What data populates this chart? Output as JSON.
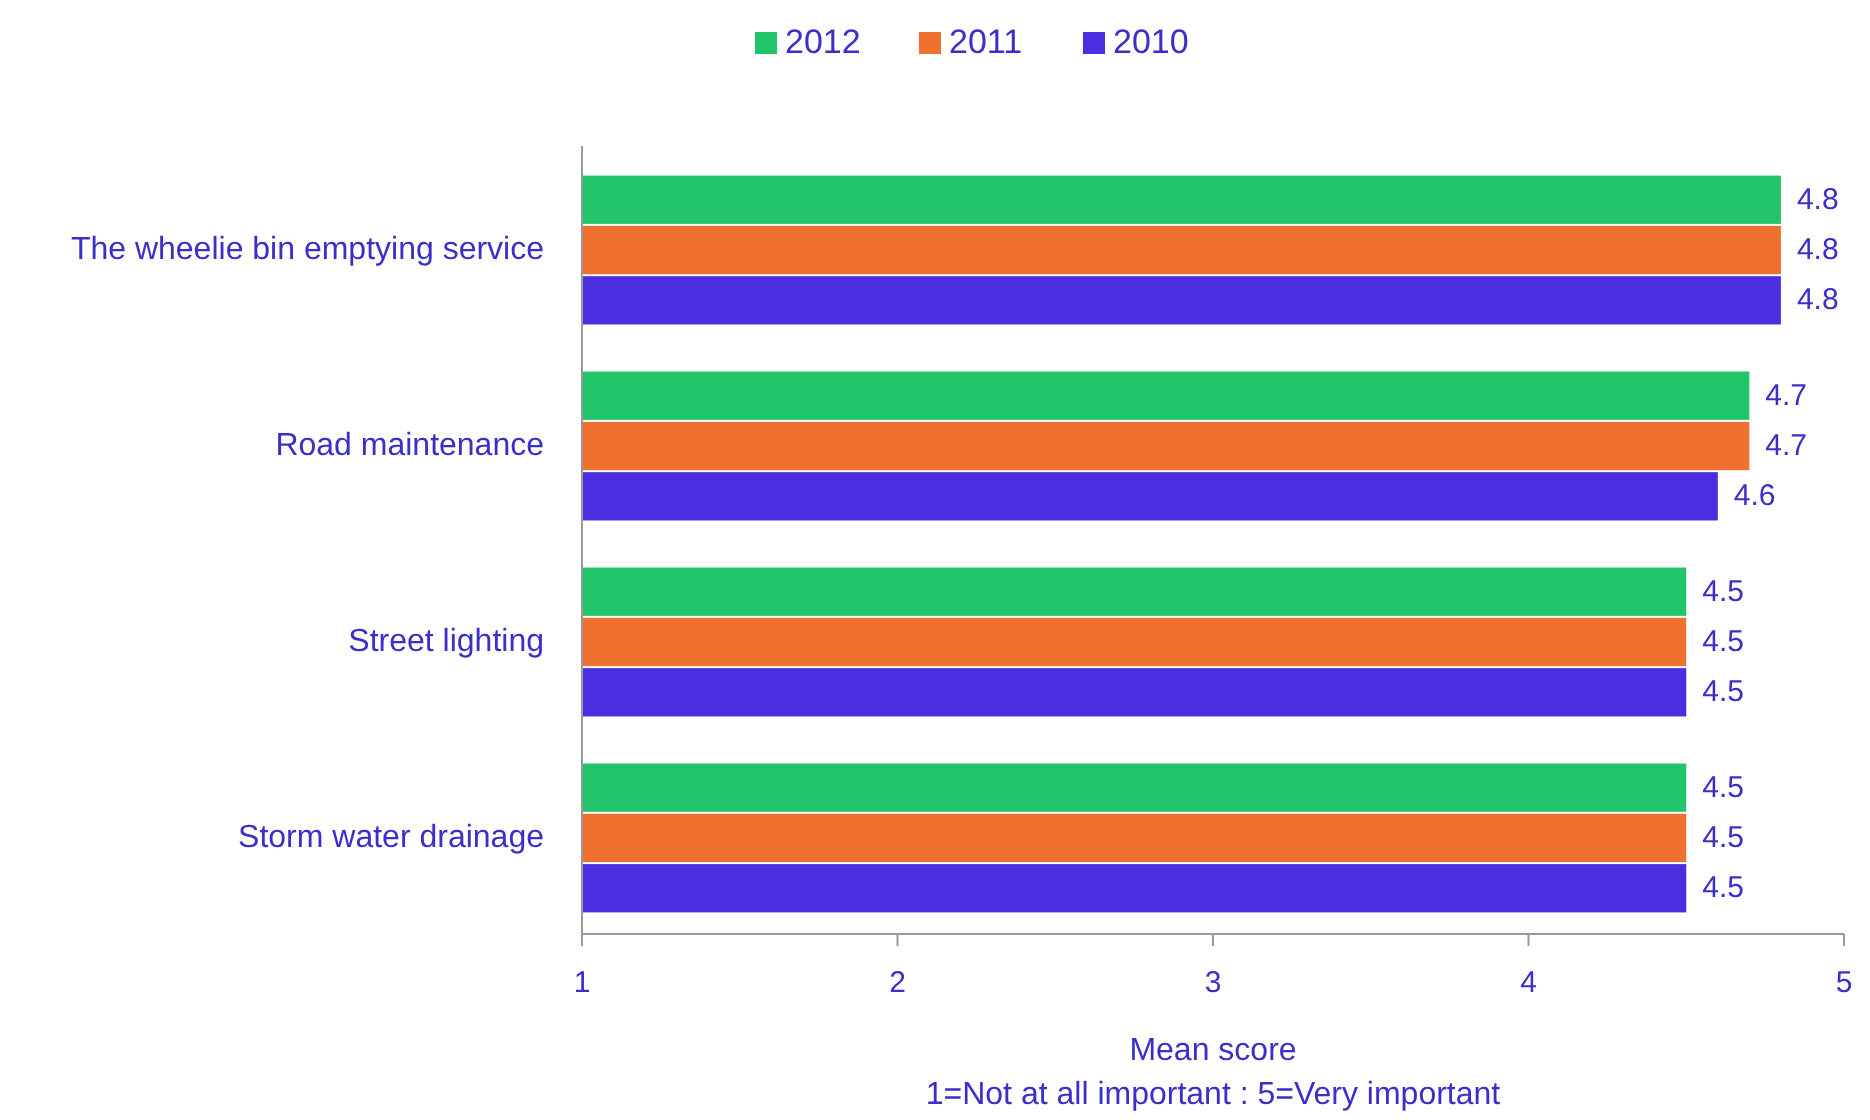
{
  "chart_data": {
    "type": "bar",
    "orientation": "horizontal",
    "categories": [
      "The wheelie bin emptying service",
      "Road maintenance",
      "Street lighting",
      "Storm water drainage"
    ],
    "series": [
      {
        "name": "2012",
        "color": "#22c46a",
        "values": [
          4.8,
          4.7,
          4.5,
          4.5
        ]
      },
      {
        "name": "2011",
        "color": "#f07030",
        "values": [
          4.8,
          4.7,
          4.5,
          4.5
        ]
      },
      {
        "name": "2010",
        "color": "#4a2ee0",
        "values": [
          4.8,
          4.6,
          4.5,
          4.5
        ]
      }
    ],
    "xlim": [
      1,
      5
    ],
    "xticks": [
      1,
      2,
      3,
      4,
      5
    ],
    "xlabel": "Mean score",
    "annotations": [
      "1=Not at all important  :  5=Very important"
    ],
    "data_labels": true,
    "legend": "top",
    "grid": false
  }
}
